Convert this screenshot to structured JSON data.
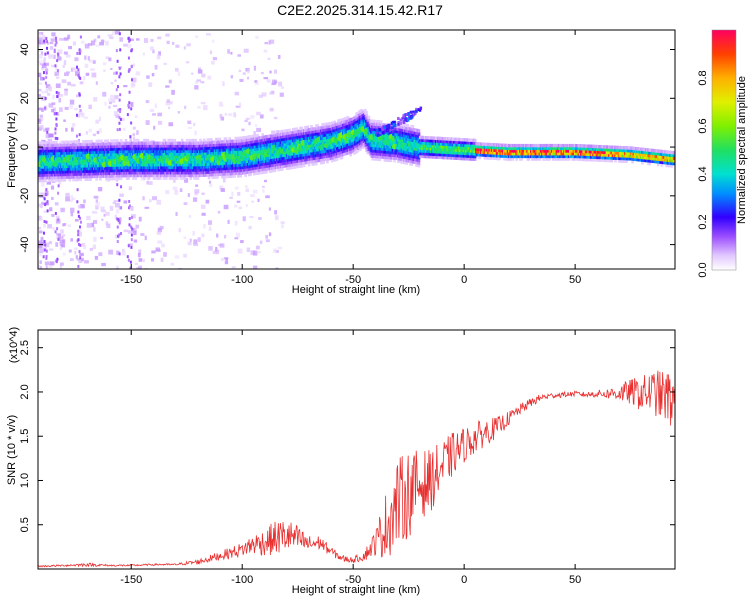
{
  "title": "C2E2.2025.314.15.42.R17",
  "chart_data": [
    {
      "type": "heatmap",
      "name": "spectrogram",
      "xlabel": "Height of straight line (km)",
      "ylabel": "Frequency (Hz)",
      "xlim": [
        -192,
        95
      ],
      "ylim": [
        -50,
        48
      ],
      "xticks": [
        -150,
        -100,
        -50,
        0,
        50
      ],
      "yticks": [
        -40,
        -20,
        0,
        20,
        40
      ],
      "colorbar": {
        "label": "Normalized spectral amplitude",
        "range": [
          0.0,
          1.0
        ],
        "ticks": [
          0.0,
          0.2,
          0.4,
          0.6,
          0.8
        ]
      },
      "ridge": {
        "description_points_x": [
          -192,
          -150,
          -120,
          -100,
          -80,
          -60,
          -50,
          -45,
          -42,
          -30,
          -20,
          0,
          20,
          50,
          75,
          95
        ],
        "description_points_y": [
          -6,
          -5,
          -5,
          -4,
          -1,
          2,
          5,
          8,
          3,
          2,
          0,
          -1,
          -2,
          -2,
          -3,
          -5
        ]
      },
      "scatter_streak": {
        "x_range": [
          -40,
          -20
        ],
        "y_range": [
          6,
          16
        ]
      }
    },
    {
      "type": "line",
      "name": "snr",
      "xlabel": "Height of straight line (km)",
      "ylabel": "SNR (10 * v/v)",
      "multiplier": "(x10^4)",
      "xlim": [
        -192,
        95
      ],
      "ylim": [
        0,
        2.7
      ],
      "xticks": [
        -150,
        -100,
        -50,
        0,
        50
      ],
      "yticks": [
        0.5,
        1.0,
        1.5,
        2.0,
        2.5
      ],
      "series": [
        {
          "name": "SNR",
          "color": "#e83030",
          "x": [
            -192,
            -180,
            -170,
            -160,
            -150,
            -140,
            -130,
            -120,
            -110,
            -100,
            -95,
            -90,
            -85,
            -80,
            -75,
            -70,
            -65,
            -60,
            -55,
            -50,
            -45,
            -40,
            -35,
            -30,
            -25,
            -20,
            -15,
            -10,
            -5,
            0,
            5,
            10,
            15,
            20,
            25,
            30,
            35,
            40,
            45,
            50,
            55,
            60,
            65,
            70,
            75,
            80,
            85,
            90,
            95
          ],
          "values": [
            0.03,
            0.04,
            0.05,
            0.04,
            0.04,
            0.05,
            0.05,
            0.08,
            0.15,
            0.22,
            0.28,
            0.3,
            0.35,
            0.38,
            0.34,
            0.28,
            0.3,
            0.2,
            0.12,
            0.1,
            0.15,
            0.3,
            0.5,
            0.75,
            0.85,
            0.95,
            1.0,
            1.15,
            1.3,
            1.4,
            1.48,
            1.55,
            1.6,
            1.7,
            1.8,
            1.88,
            1.94,
            1.96,
            1.97,
            1.98,
            1.97,
            1.98,
            1.98,
            1.99,
            2.0,
            1.98,
            2.0,
            1.95,
            1.9
          ],
          "noise_amplitude": [
            0.01,
            0.01,
            0.02,
            0.01,
            0.01,
            0.01,
            0.01,
            0.03,
            0.05,
            0.08,
            0.12,
            0.15,
            0.2,
            0.2,
            0.15,
            0.1,
            0.08,
            0.05,
            0.04,
            0.03,
            0.06,
            0.15,
            0.4,
            0.5,
            0.5,
            0.4,
            0.35,
            0.3,
            0.25,
            0.2,
            0.18,
            0.15,
            0.12,
            0.08,
            0.06,
            0.05,
            0.04,
            0.03,
            0.03,
            0.03,
            0.03,
            0.04,
            0.06,
            0.1,
            0.15,
            0.2,
            0.25,
            0.3,
            0.35
          ]
        }
      ]
    }
  ]
}
